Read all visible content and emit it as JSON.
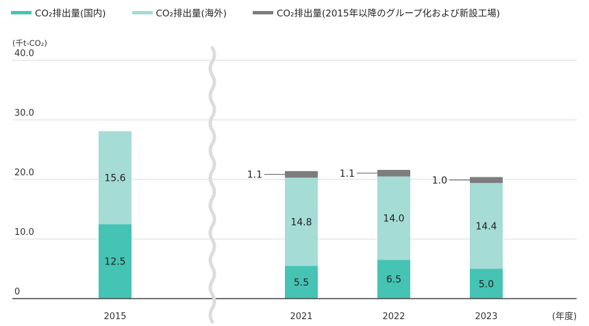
{
  "chart_data": {
    "type": "bar",
    "stacked": true,
    "categories": [
      "2015",
      "2021",
      "2022",
      "2023"
    ],
    "series": [
      {
        "name": "CO₂排出量(国内)",
        "color": "#45c3b3",
        "values": [
          12.5,
          5.5,
          6.5,
          5.0
        ]
      },
      {
        "name": "CO₂排出量(海外)",
        "color": "#a5dcd5",
        "values": [
          15.6,
          14.8,
          14.0,
          14.4
        ]
      },
      {
        "name": "CO₂排出量(2015年以降のグループ化および新設工場)",
        "color": "#7d7d7d",
        "values": [
          null,
          1.1,
          1.1,
          1.0
        ]
      }
    ],
    "data_labels": {
      "domestic": [
        "12.5",
        "5.5",
        "6.5",
        "5.0"
      ],
      "overseas": [
        "15.6",
        "14.8",
        "14.0",
        "14.4"
      ],
      "new_plants": [
        "",
        "1.1",
        "1.1",
        "1.0"
      ]
    },
    "y_ticks": [
      "0",
      "10.0",
      "20.0",
      "30.0",
      "40.0"
    ],
    "ylim": [
      0,
      40
    ],
    "y_unit": "(千t-CO₂)",
    "x_unit": "(年度)",
    "axis_break_between": [
      "2015",
      "2021"
    ],
    "legend_position": "top-left",
    "grid": true
  }
}
